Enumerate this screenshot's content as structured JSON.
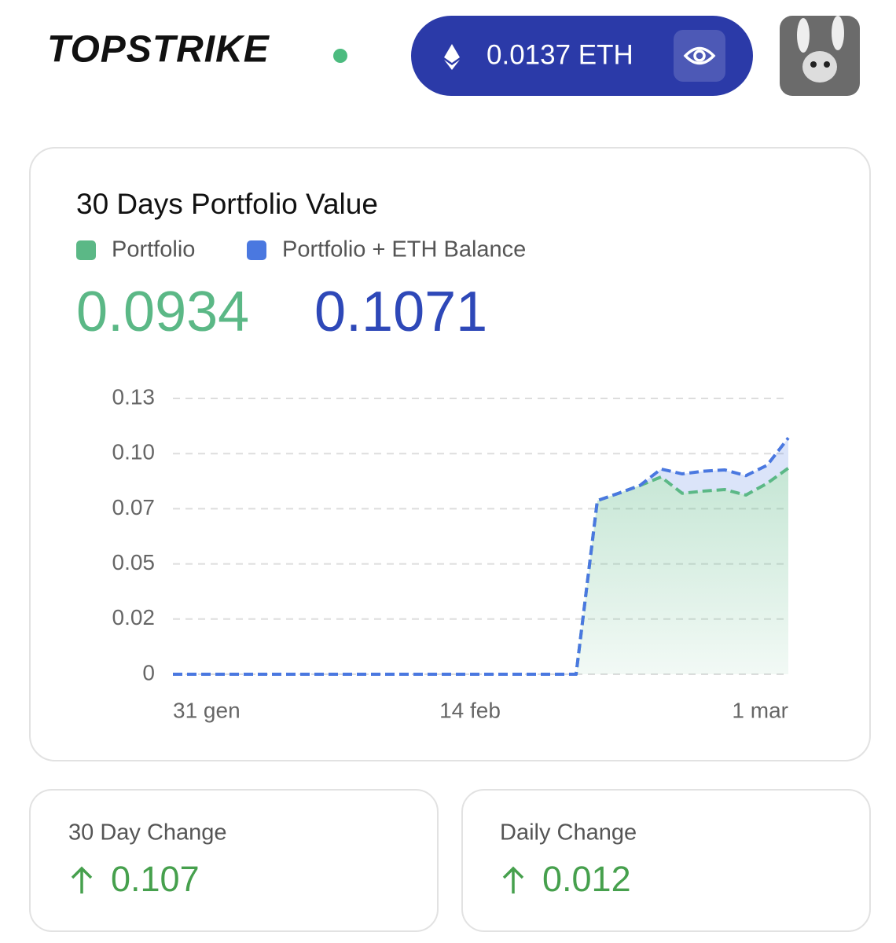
{
  "header": {
    "brand": "TOPSTRIKE",
    "balance": "0.0137 ETH"
  },
  "summary": {
    "portfolio": "0.0934",
    "total": "0.1071"
  },
  "chart_data": {
    "type": "line",
    "title": "30 Days Portfolio Value",
    "categories": [
      "31 gen",
      null,
      null,
      null,
      null,
      null,
      null,
      null,
      null,
      null,
      null,
      null,
      null,
      null,
      "14 feb",
      null,
      null,
      null,
      null,
      null,
      null,
      null,
      null,
      null,
      null,
      null,
      null,
      null,
      null,
      "1 mar"
    ],
    "series": [
      {
        "name": "Portfolio",
        "color": "#5bb886",
        "values": [
          0,
          0,
          0,
          0,
          0,
          0,
          0,
          0,
          0,
          0,
          0,
          0,
          0,
          0,
          0,
          0,
          0,
          0,
          0,
          0,
          0.0787,
          0.082,
          0.0855,
          0.0894,
          0.082,
          0.083,
          0.0837,
          0.0812,
          0.0865,
          0.0934
        ]
      },
      {
        "name": "Portfolio + ETH Balance",
        "color": "#4a78e0",
        "values": [
          0,
          0,
          0,
          0,
          0,
          0,
          0,
          0,
          0,
          0,
          0,
          0,
          0,
          0,
          0,
          0,
          0,
          0,
          0,
          0,
          0.0787,
          0.082,
          0.0855,
          0.093,
          0.0908,
          0.092,
          0.0926,
          0.09,
          0.0947,
          0.1071
        ]
      }
    ],
    "ylim": [
      0,
      0.125
    ],
    "yticks": [
      0,
      {
        "value": 0.025,
        "label": "0.02"
      },
      0.05,
      {
        "value": 0.075,
        "label": "0.07"
      },
      {
        "value": 0.1,
        "label": "0.10"
      },
      {
        "value": 0.125,
        "label": "0.13"
      }
    ],
    "grid": true
  },
  "stats": [
    {
      "label": "30 Day Change",
      "value": "0.107"
    },
    {
      "label": "Daily Change",
      "value": "0.012"
    }
  ]
}
